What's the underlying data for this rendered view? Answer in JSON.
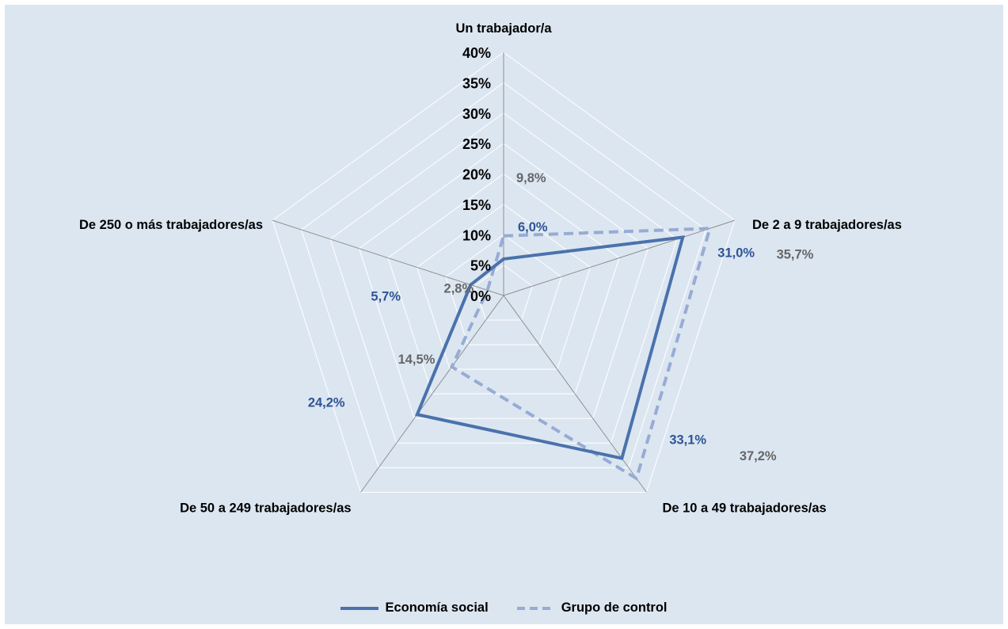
{
  "chart_data": {
    "type": "radar",
    "categories": [
      "Un trabajador/a",
      "De 2 a 9 trabajadores/as",
      "De 10 a 49 trabajadores/as",
      "De 50 a 249 trabajadores/as",
      "De 250 o más trabajadores/as"
    ],
    "axis": {
      "min": 0,
      "max": 40,
      "step": 5,
      "tick_labels": [
        "0%",
        "5%",
        "10%",
        "15%",
        "20%",
        "25%",
        "30%",
        "35%",
        "40%"
      ]
    },
    "series": [
      {
        "name": "Economía social",
        "values": [
          6.0,
          31.0,
          33.1,
          24.2,
          5.7
        ],
        "labels": [
          "6,0%",
          "31,0%",
          "33,1%",
          "24,2%",
          "5,7%"
        ],
        "color": "#4a72ac",
        "label_color": "#2e5495",
        "line_style": "solid"
      },
      {
        "name": "Grupo de control",
        "values": [
          9.8,
          35.7,
          37.2,
          14.5,
          2.8
        ],
        "labels": [
          "9,8%",
          "35,7%",
          "37,2%",
          "14,5%",
          "2,8%"
        ],
        "color": "#97abd4",
        "label_color": "#666666",
        "line_style": "dashed"
      }
    ],
    "grid": true,
    "legend": "bottom",
    "colors": {
      "plot_background": "#dce6f1",
      "gridline": "#ffffff",
      "spoke": "#8f8f8f"
    }
  }
}
